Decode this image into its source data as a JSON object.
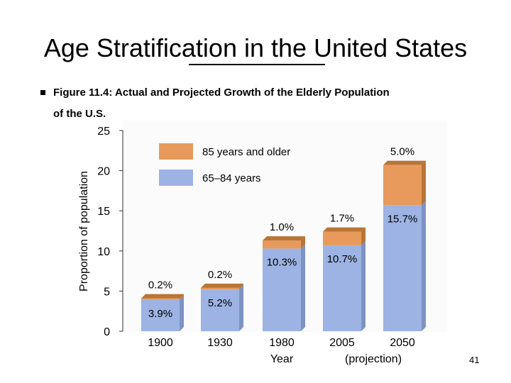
{
  "slide": {
    "title": "Age Stratification in the United States",
    "bullet": "Figure 11.4: Actual and Projected Growth of the Elderly Population",
    "bullet_cont": "of the U.S.",
    "page_number": "41"
  },
  "colors": {
    "older": "#E89A5C",
    "older_top": "#B87535",
    "younger": "#9CB3E3",
    "younger_side": "#7C93C4",
    "plot_bg": "#FBFBFB"
  },
  "chart_data": {
    "type": "bar",
    "stacked": true,
    "categories": [
      "1900",
      "1930",
      "1980",
      "2005",
      "2050"
    ],
    "xlabel": "Year",
    "xlabel_note": "(projection)",
    "ylabel": "Proportion of population",
    "ylim": [
      0,
      25
    ],
    "yticks": [
      0,
      5,
      10,
      15,
      20,
      25
    ],
    "legend_position": "top-left",
    "series": [
      {
        "name": "65–84 years",
        "values": [
          3.9,
          5.2,
          10.3,
          10.7,
          15.7
        ],
        "labels": [
          "3.9%",
          "5.2%",
          "10.3%",
          "10.7%",
          "15.7%"
        ]
      },
      {
        "name": "85 years and older",
        "values": [
          0.2,
          0.2,
          1.0,
          1.7,
          5.0
        ],
        "labels": [
          "0.2%",
          "0.2%",
          "1.0%",
          "1.7%",
          "5.0%"
        ]
      }
    ]
  }
}
